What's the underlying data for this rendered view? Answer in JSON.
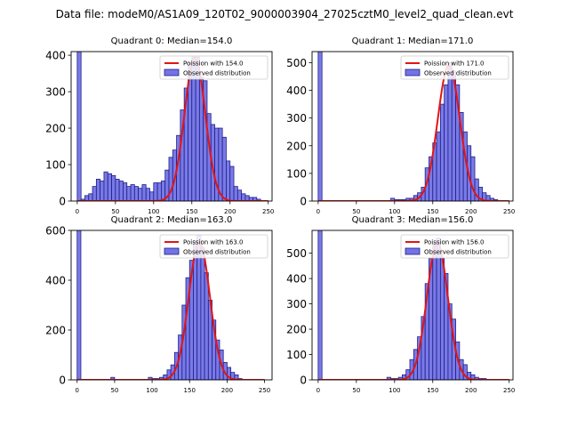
{
  "figure": {
    "suptitle": "Data file: modeM0/AS1A09_120T02_9000003904_27025cztM0_level2_quad_clean.evt"
  },
  "colors": {
    "bar_fill": "#7373e6",
    "bar_edge": "#1f1f8a",
    "curve": "#e31414",
    "axis": "#000000"
  },
  "chart_data": [
    {
      "type": "bar",
      "title": "Quadrant 0: Median=154.0",
      "legend": [
        "Poission with 154.0",
        "Observed distribution"
      ],
      "legend_position": "top-right",
      "xlim": [
        -8,
        255
      ],
      "ylim": [
        0,
        410
      ],
      "xticks": [
        0,
        50,
        100,
        150,
        200,
        250
      ],
      "yticks": [
        0,
        100,
        200,
        300,
        400
      ],
      "bin_width": 5,
      "bins_start": [
        0,
        5,
        10,
        15,
        20,
        25,
        30,
        35,
        40,
        45,
        50,
        55,
        60,
        65,
        70,
        75,
        80,
        85,
        90,
        95,
        100,
        105,
        110,
        115,
        120,
        125,
        130,
        135,
        140,
        145,
        150,
        155,
        160,
        165,
        170,
        175,
        180,
        185,
        190,
        195,
        200,
        205,
        210,
        215,
        220,
        225,
        230,
        235,
        240
      ],
      "counts": [
        410,
        5,
        15,
        20,
        40,
        60,
        55,
        80,
        75,
        70,
        60,
        55,
        50,
        40,
        45,
        40,
        35,
        45,
        35,
        25,
        50,
        50,
        55,
        85,
        120,
        140,
        180,
        250,
        310,
        380,
        395,
        395,
        340,
        330,
        240,
        210,
        200,
        200,
        175,
        110,
        95,
        40,
        30,
        20,
        15,
        10,
        10,
        5,
        0
      ],
      "curve_mean": 154.0,
      "curve_peak": 395
    },
    {
      "type": "bar",
      "title": "Quadrant 1: Median=171.0",
      "legend": [
        "Poission with 171.0",
        "Observed distribution"
      ],
      "legend_position": "top-right",
      "xlim": [
        -8,
        255
      ],
      "ylim": [
        0,
        540
      ],
      "xticks": [
        0,
        50,
        100,
        150,
        200,
        250
      ],
      "yticks": [
        0,
        100,
        200,
        300,
        400,
        500
      ],
      "bin_width": 5,
      "bins_start": [
        0,
        5,
        10,
        15,
        20,
        25,
        30,
        35,
        40,
        45,
        50,
        55,
        60,
        65,
        70,
        75,
        80,
        85,
        90,
        95,
        100,
        105,
        110,
        115,
        120,
        125,
        130,
        135,
        140,
        145,
        150,
        155,
        160,
        165,
        170,
        175,
        180,
        185,
        190,
        195,
        200,
        205,
        210,
        215,
        220,
        225,
        230,
        235,
        240
      ],
      "counts": [
        540,
        0,
        0,
        0,
        0,
        0,
        0,
        0,
        0,
        0,
        0,
        0,
        0,
        0,
        0,
        0,
        0,
        0,
        0,
        10,
        5,
        5,
        5,
        10,
        10,
        20,
        30,
        50,
        120,
        160,
        210,
        250,
        350,
        420,
        500,
        470,
        420,
        320,
        250,
        200,
        160,
        80,
        50,
        30,
        20,
        10,
        5,
        0,
        0
      ],
      "curve_mean": 171.0,
      "curve_peak": 490
    },
    {
      "type": "bar",
      "title": "Quadrant 2: Median=163.0",
      "legend": [
        "Poission with 163.0",
        "Observed distribution"
      ],
      "legend_position": "top-right",
      "xlim": [
        -8,
        260
      ],
      "ylim": [
        0,
        600
      ],
      "xticks": [
        0,
        50,
        100,
        150,
        200,
        250
      ],
      "yticks": [
        0,
        200,
        400,
        600
      ],
      "bin_width": 5,
      "bins_start": [
        0,
        5,
        10,
        15,
        20,
        25,
        30,
        35,
        40,
        45,
        50,
        55,
        60,
        65,
        70,
        75,
        80,
        85,
        90,
        95,
        100,
        105,
        110,
        115,
        120,
        125,
        130,
        135,
        140,
        145,
        150,
        155,
        160,
        165,
        170,
        175,
        180,
        185,
        190,
        195,
        200,
        205,
        210,
        215,
        220,
        225,
        230,
        235,
        240
      ],
      "counts": [
        600,
        0,
        0,
        0,
        0,
        0,
        0,
        0,
        0,
        10,
        0,
        0,
        0,
        0,
        0,
        0,
        0,
        0,
        0,
        10,
        5,
        5,
        10,
        20,
        40,
        60,
        110,
        180,
        300,
        410,
        480,
        560,
        580,
        530,
        430,
        320,
        240,
        160,
        120,
        70,
        50,
        30,
        20,
        5,
        0,
        0,
        0,
        0,
        0
      ],
      "curve_mean": 163.0,
      "curve_peak": 555
    },
    {
      "type": "bar",
      "title": "Quadrant 3: Median=156.0",
      "legend": [
        "Poission with 156.0",
        "Observed distribution"
      ],
      "legend_position": "top-right",
      "xlim": [
        -8,
        255
      ],
      "ylim": [
        0,
        590
      ],
      "xticks": [
        0,
        50,
        100,
        150,
        200,
        250
      ],
      "yticks": [
        0,
        100,
        200,
        300,
        400,
        500
      ],
      "bin_width": 5,
      "bins_start": [
        0,
        5,
        10,
        15,
        20,
        25,
        30,
        35,
        40,
        45,
        50,
        55,
        60,
        65,
        70,
        75,
        80,
        85,
        90,
        95,
        100,
        105,
        110,
        115,
        120,
        125,
        130,
        135,
        140,
        145,
        150,
        155,
        160,
        165,
        170,
        175,
        180,
        185,
        190,
        195,
        200,
        205,
        210,
        215,
        220,
        225,
        230,
        235,
        240
      ],
      "counts": [
        590,
        0,
        0,
        0,
        0,
        0,
        0,
        0,
        0,
        0,
        0,
        0,
        0,
        0,
        0,
        0,
        0,
        0,
        10,
        5,
        5,
        10,
        20,
        40,
        80,
        120,
        170,
        250,
        380,
        480,
        540,
        560,
        480,
        420,
        300,
        240,
        150,
        80,
        60,
        30,
        20,
        10,
        5,
        5,
        0,
        0,
        0,
        0,
        0
      ],
      "curve_mean": 156.0,
      "curve_peak": 540
    }
  ]
}
